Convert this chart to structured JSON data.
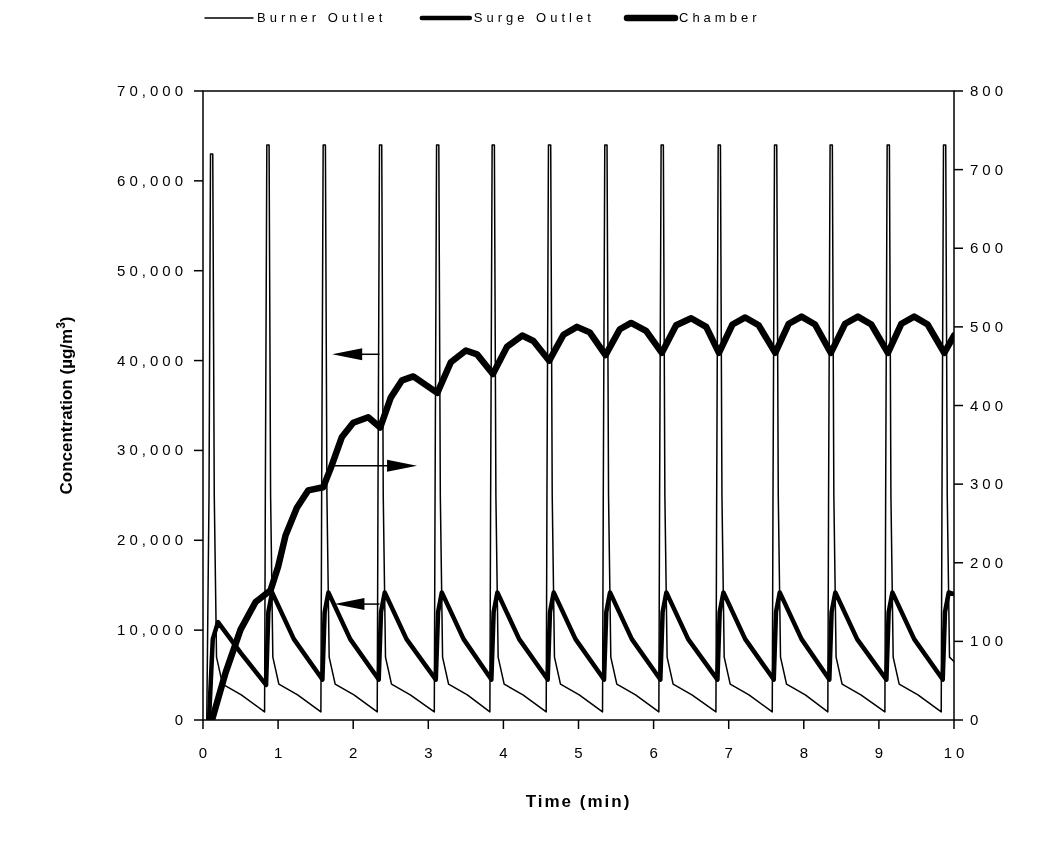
{
  "chart_data": {
    "type": "line",
    "xlabel": "Time (min)",
    "ylabel": "Concentration (µg/m$^{3}$)",
    "xlim": [
      0,
      10
    ],
    "xticks": [
      0,
      1,
      2,
      3,
      4,
      5,
      6,
      7,
      8,
      9,
      10
    ],
    "ylim": [
      0,
      70000
    ],
    "yticks": [
      0,
      {
        "value": 10000,
        "label": "10,000"
      },
      {
        "value": 20000,
        "label": "20,000"
      },
      {
        "value": 30000,
        "label": "30,000"
      },
      {
        "value": 40000,
        "label": "40,000"
      },
      {
        "value": 50000,
        "label": "50,000"
      },
      {
        "value": 60000,
        "label": "60,000"
      },
      {
        "value": 70000,
        "label": "70,000"
      }
    ],
    "y2lim": [
      0,
      800
    ],
    "y2ticks": [
      0,
      100,
      200,
      300,
      400,
      500,
      600,
      700,
      800
    ],
    "legend": "top",
    "grid": false,
    "marker": "none",
    "line_style": "solid",
    "series": [
      {
        "name": "Burner Outlet",
        "color": "#000000",
        "x": [
          0.05,
          0.08,
          0.1,
          0.13,
          0.15,
          0.18,
          0.26,
          0.51,
          0.82,
          0.83,
          0.85,
          0.88,
          0.9,
          0.93,
          1.01,
          1.26,
          1.57,
          1.58,
          1.6,
          1.63,
          1.65,
          1.68,
          1.76,
          2.01,
          2.32,
          2.33,
          2.35,
          2.38,
          2.4,
          2.43,
          2.51,
          2.76,
          3.08,
          3.09,
          3.11,
          3.14,
          3.16,
          3.19,
          3.27,
          3.52,
          3.82,
          3.83,
          3.85,
          3.88,
          3.9,
          3.93,
          4.01,
          4.26,
          4.57,
          4.58,
          4.6,
          4.63,
          4.65,
          4.68,
          4.76,
          5.01,
          5.32,
          5.33,
          5.35,
          5.38,
          5.4,
          5.43,
          5.51,
          5.76,
          6.07,
          6.08,
          6.1,
          6.13,
          6.15,
          6.18,
          6.26,
          6.51,
          6.83,
          6.84,
          6.86,
          6.89,
          6.91,
          6.94,
          7.02,
          7.27,
          7.58,
          7.59,
          7.61,
          7.64,
          7.66,
          7.69,
          7.77,
          8.02,
          8.32,
          8.33,
          8.35,
          8.38,
          8.4,
          8.43,
          8.51,
          8.76,
          9.08,
          9.09,
          9.11,
          9.14,
          9.16,
          9.19,
          9.27,
          9.52,
          9.83,
          9.84,
          9.86,
          9.89,
          9.91,
          9.94,
          10
        ],
        "values": [
          0,
          25000,
          63000,
          63000,
          25000,
          7000,
          4000,
          2800,
          900,
          25000,
          64000,
          64000,
          25000,
          7000,
          4000,
          2800,
          900,
          25000,
          64000,
          64000,
          25000,
          7000,
          4000,
          2800,
          900,
          25000,
          64000,
          64000,
          25000,
          7000,
          4000,
          2800,
          900,
          25000,
          64000,
          64000,
          25000,
          7000,
          4000,
          2800,
          900,
          25000,
          64000,
          64000,
          25000,
          7000,
          4000,
          2800,
          900,
          25000,
          64000,
          64000,
          25000,
          7000,
          4000,
          2800,
          900,
          25000,
          64000,
          64000,
          25000,
          7000,
          4000,
          2800,
          900,
          25000,
          64000,
          64000,
          25000,
          7000,
          4000,
          2800,
          900,
          25000,
          64000,
          64000,
          25000,
          7000,
          4000,
          2800,
          900,
          25000,
          64000,
          64000,
          25000,
          7000,
          4000,
          2800,
          900,
          25000,
          64000,
          64000,
          25000,
          7000,
          4000,
          2800,
          900,
          25000,
          64000,
          64000,
          25000,
          7000,
          4000,
          2800,
          900,
          25000,
          64000,
          64000,
          25000,
          7000,
          6500
        ]
      },
      {
        "name": "Surge Outlet",
        "color": "#000000",
        "x": [
          0.08,
          0.13,
          0.2,
          0.5,
          0.84,
          0.87,
          0.92,
          1.21,
          1.59,
          1.62,
          1.67,
          1.96,
          2.34,
          2.37,
          2.42,
          2.71,
          3.1,
          3.13,
          3.18,
          3.47,
          3.84,
          3.87,
          3.92,
          4.21,
          4.59,
          4.62,
          4.67,
          4.96,
          5.34,
          5.37,
          5.42,
          5.71,
          6.09,
          6.12,
          6.17,
          6.46,
          6.85,
          6.88,
          6.93,
          7.22,
          7.6,
          7.63,
          7.68,
          7.97,
          8.34,
          8.37,
          8.42,
          8.71,
          9.1,
          9.13,
          9.18,
          9.47,
          9.85,
          9.88,
          9.93,
          10
        ],
        "values": [
          0,
          9000,
          10900,
          7500,
          3900,
          12000,
          14200,
          9000,
          4500,
          12000,
          14200,
          9000,
          4500,
          12000,
          14200,
          9000,
          4500,
          12000,
          14200,
          9000,
          4500,
          12000,
          14200,
          9000,
          4500,
          12000,
          14200,
          9000,
          4500,
          12000,
          14200,
          9000,
          4500,
          12000,
          14200,
          9000,
          4500,
          12000,
          14200,
          9000,
          4500,
          12000,
          14200,
          9000,
          4500,
          12000,
          14200,
          9000,
          4500,
          12000,
          14200,
          9000,
          4500,
          12000,
          14200,
          14000
        ]
      },
      {
        "name": "Chamber",
        "color": "#000000",
        "axis": "y2",
        "x": [
          0.12,
          0.3,
          0.5,
          0.7,
          0.9,
          1.0,
          1.1,
          1.25,
          1.4,
          1.6,
          1.7,
          1.85,
          2.0,
          2.2,
          2.36,
          2.5,
          2.65,
          2.8,
          3.12,
          3.3,
          3.5,
          3.65,
          3.86,
          4.05,
          4.25,
          4.4,
          4.61,
          4.8,
          4.98,
          5.15,
          5.36,
          5.55,
          5.7,
          5.9,
          6.11,
          6.3,
          6.5,
          6.7,
          6.87,
          7.05,
          7.22,
          7.4,
          7.62,
          7.8,
          7.97,
          8.15,
          8.36,
          8.55,
          8.72,
          8.9,
          9.12,
          9.3,
          9.47,
          9.65,
          9.87,
          10
        ],
        "values": [
          0,
          60,
          115,
          150,
          165,
          195,
          235,
          270,
          292,
          296,
          320,
          360,
          378,
          385,
          372,
          410,
          432,
          437,
          416,
          455,
          470,
          465,
          440,
          475,
          489,
          482,
          457,
          490,
          500,
          493,
          464,
          497,
          505,
          495,
          467,
          502,
          511,
          500,
          467,
          503,
          512,
          502,
          467,
          504,
          513,
          503,
          467,
          504,
          513,
          503,
          467,
          504,
          513,
          503,
          467,
          489
        ]
      }
    ]
  }
}
